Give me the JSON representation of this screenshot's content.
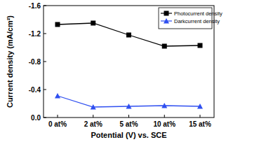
{
  "chart_data": {
    "type": "line",
    "x_label": "Potential (V) vs. SCE",
    "y_label": "Current density (mA/cm²)",
    "categories": [
      "0 at%",
      "2 at%",
      "5 at%",
      "10 at%",
      "15 at%"
    ],
    "series": [
      {
        "name": "Photocurrent density",
        "color": "#000000",
        "marker": "square",
        "line_style": "solid",
        "values": [
          -1.33,
          -1.35,
          -1.18,
          -1.02,
          -1.03
        ]
      },
      {
        "name": "Darkcurrent density",
        "color": "#2f4ff0",
        "marker": "triangle",
        "line_style": "solid",
        "values": [
          -0.31,
          -0.15,
          -0.16,
          -0.17,
          -0.16
        ]
      }
    ],
    "ylim": [
      0,
      -1.6
    ],
    "yticks": [
      {
        "value": 0,
        "label": "0.0"
      },
      -0.4,
      -0.8,
      -1.2,
      -1.6
    ],
    "grid": false,
    "legend": "upper right"
  }
}
